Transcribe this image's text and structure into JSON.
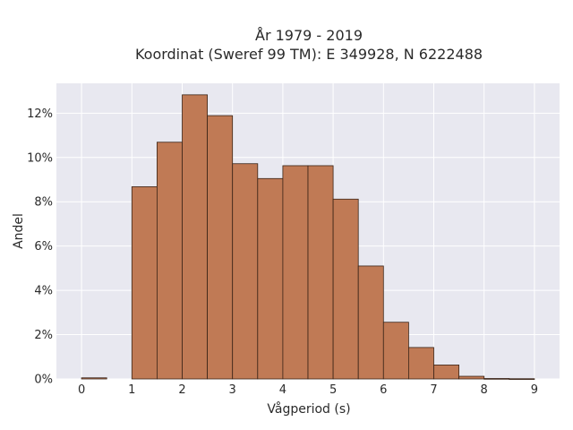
{
  "chart_data": {
    "type": "bar",
    "title_line1": "År 1979 - 2019",
    "title_line2": "Koordinat (Sweref 99 TM): E 349928, N 6222488",
    "xlabel": "Vågperiod (s)",
    "ylabel": "Andel",
    "x_ticks": [
      0,
      1,
      2,
      3,
      4,
      5,
      6,
      7,
      8,
      9
    ],
    "y_ticks": [
      0,
      0.02,
      0.04,
      0.06,
      0.08,
      0.1,
      0.12
    ],
    "y_tick_labels": [
      "0%",
      "2%",
      "4%",
      "6%",
      "8%",
      "10%",
      "12%"
    ],
    "xlim": [
      -0.5,
      9.5
    ],
    "ylim": [
      0,
      0.1335
    ],
    "bin_width": 0.5,
    "bins": [
      {
        "x0": 0.0,
        "value": 0.0005
      },
      {
        "x0": 0.5,
        "value": 0.0
      },
      {
        "x0": 1.0,
        "value": 0.0868
      },
      {
        "x0": 1.5,
        "value": 0.1069
      },
      {
        "x0": 2.0,
        "value": 0.1283
      },
      {
        "x0": 2.5,
        "value": 0.1189
      },
      {
        "x0": 3.0,
        "value": 0.0972
      },
      {
        "x0": 3.5,
        "value": 0.0905
      },
      {
        "x0": 4.0,
        "value": 0.0963
      },
      {
        "x0": 4.5,
        "value": 0.0963
      },
      {
        "x0": 5.0,
        "value": 0.0812
      },
      {
        "x0": 5.5,
        "value": 0.051
      },
      {
        "x0": 6.0,
        "value": 0.0256
      },
      {
        "x0": 6.5,
        "value": 0.0142
      },
      {
        "x0": 7.0,
        "value": 0.0063
      },
      {
        "x0": 7.5,
        "value": 0.0012
      },
      {
        "x0": 8.0,
        "value": 0.0002
      },
      {
        "x0": 8.5,
        "value": 0.0001
      }
    ],
    "grid": true,
    "colors": {
      "bar_fill": "#c07a55",
      "bar_edge": "#3a2417",
      "plot_background": "#e8e8f0",
      "grid": "#ffffff"
    }
  }
}
